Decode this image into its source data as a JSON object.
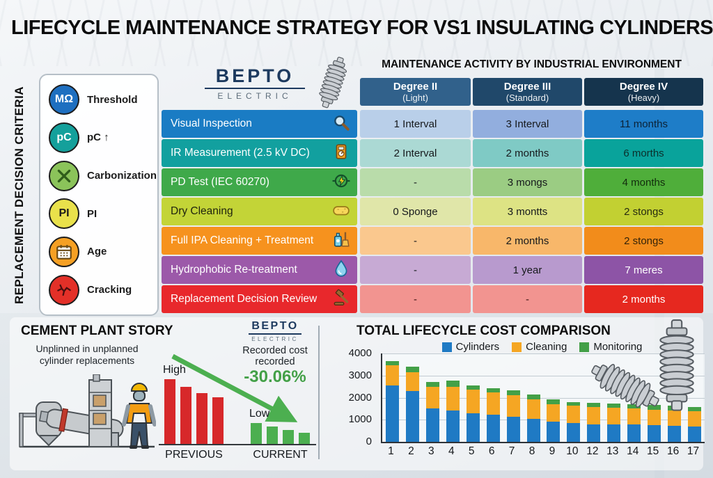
{
  "title": "LIFECYCLE MAINTENANCE STRATEGY FOR VS1 INSULATING CYLINDERS",
  "brand": {
    "name": "BEPTO",
    "sub": "ELECTRIC"
  },
  "sidebar": {
    "title": "REPLACEMENT DECISION CRITERIA",
    "items": [
      {
        "icon": "mohm-badge",
        "badge": "MΩ",
        "badge_color": "#ffffff",
        "color": "#1e6fc0",
        "label": "Threshold"
      },
      {
        "icon": "pc-badge",
        "badge": "pC",
        "badge_color": "#ffffff",
        "color": "#14a09b",
        "label": "pC ↑"
      },
      {
        "icon": "carbonization-icon",
        "color": "#8bc35a",
        "label": "Carbonization"
      },
      {
        "icon": "pi-badge",
        "badge": "PI",
        "badge_color": "#1a1a1a",
        "color": "#e9e14b",
        "label": "PI"
      },
      {
        "icon": "calendar-icon",
        "color": "#f5a024",
        "label": "Age"
      },
      {
        "icon": "crack-icon",
        "color": "#e33028",
        "label": "Cracking"
      }
    ]
  },
  "table": {
    "title": "MAINTENANCE ACTIVITY BY INDUSTRIAL ENVIRONMENT",
    "columns": [
      {
        "title": "Degree II",
        "subtitle": "(Light)",
        "bg": "#31618b"
      },
      {
        "title": "Degree III",
        "subtitle": "(Standard)",
        "bg": "#20486a"
      },
      {
        "title": "Degree IV",
        "subtitle": "(Heavy)",
        "bg": "#15344d"
      }
    ],
    "rows": [
      {
        "label": "Visual Inspection",
        "icon": "magnifier-icon",
        "label_bg": "#1a7cc4",
        "label_color": "#ffffff",
        "cells": [
          {
            "text": "1 Interval",
            "bg": "#b9cfe9",
            "color": "#16191c"
          },
          {
            "text": "3 Interval",
            "bg": "#92aede",
            "color": "#16191c"
          },
          {
            "text": "11 months",
            "bg": "#1e7dc8",
            "color": "#0c2236"
          }
        ]
      },
      {
        "label": "IR Measurement (2.5 kV DC)",
        "icon": "multimeter-icon",
        "label_bg": "#12a09f",
        "label_color": "#ffffff",
        "cells": [
          {
            "text": "2 Interval",
            "bg": "#abd9d4",
            "color": "#16191c"
          },
          {
            "text": "2 months",
            "bg": "#7fcac5",
            "color": "#16191c"
          },
          {
            "text": "6 morths",
            "bg": "#09a39b",
            "color": "#0b2f2b"
          }
        ]
      },
      {
        "label": "PD Test (IEC 60270)",
        "icon": "pd-test-icon",
        "label_bg": "#3fa94a",
        "label_color": "#ffffff",
        "cells": [
          {
            "text": "-",
            "bg": "#b9dcaa",
            "color": "#16191c"
          },
          {
            "text": "3 mongs",
            "bg": "#9bcc83",
            "color": "#16191c"
          },
          {
            "text": "4 months",
            "bg": "#4fae3a",
            "color": "#122c0d"
          }
        ]
      },
      {
        "label": "Dry Cleaning",
        "icon": "sponge-icon",
        "label_bg": "#c3d437",
        "label_color": "#20240e",
        "cells": [
          {
            "text": "0 Sponge",
            "bg": "#e0e6a9",
            "color": "#16191c"
          },
          {
            "text": "3 montts",
            "bg": "#dde384",
            "color": "#16191c"
          },
          {
            "text": "2 stongs",
            "bg": "#c2d032",
            "color": "#262a10"
          }
        ]
      },
      {
        "label": "Full IPA Cleaning + Treatment",
        "icon": "cleaning-kit-icon",
        "label_bg": "#f6921e",
        "label_color": "#ffffff",
        "cells": [
          {
            "text": "-",
            "bg": "#fac88e",
            "color": "#16191c"
          },
          {
            "text": "2 months",
            "bg": "#f8b76a",
            "color": "#16191c"
          },
          {
            "text": "2 stongs",
            "bg": "#f28c1b",
            "color": "#33230a"
          }
        ]
      },
      {
        "label": "Hydrophobic Re-treatment",
        "icon": "droplet-icon",
        "label_bg": "#9c59a9",
        "label_color": "#ffffff",
        "cells": [
          {
            "text": "-",
            "bg": "#c7aad4",
            "color": "#16191c"
          },
          {
            "text": "1 year",
            "bg": "#b89ace",
            "color": "#16191c"
          },
          {
            "text": "7 meres",
            "bg": "#8d54a6",
            "color": "#ffffff"
          }
        ]
      },
      {
        "label": "Replacement Decision Review",
        "icon": "gavel-icon",
        "label_bg": "#e8282c",
        "label_color": "#ffffff",
        "cells": [
          {
            "text": "-",
            "bg": "#f29490",
            "color": "#3c1513"
          },
          {
            "text": "-",
            "bg": "#f29490",
            "color": "#3c1513"
          },
          {
            "text": "2 months",
            "bg": "#e6281f",
            "color": "#ffffff"
          }
        ]
      }
    ]
  },
  "story": {
    "title": "CEMENT PLANT STORY",
    "subtitle_line1": "Unplinned in unplanned",
    "subtitle_line2": "cylinder replacements"
  },
  "chart_data": [
    {
      "type": "bar",
      "title": "CEMENT PLANT STORY",
      "subtitle": "Unplinned in unplanned cylinder replacements",
      "note": "no numeric axis shown; values are relative bar heights (0-100)",
      "groups": [
        {
          "label": "PREVIOUS",
          "annotation": "High",
          "color": "#d7282a",
          "values": [
            95,
            84,
            75,
            69
          ]
        },
        {
          "label": "CURRENT",
          "annotation": "Low",
          "color": "#4caf50",
          "values": [
            32,
            27,
            22,
            18
          ]
        }
      ],
      "callout": {
        "text_line1": "Recorded cost",
        "text_line2": "recorded",
        "value": "-30.06%",
        "color": "#43a047"
      }
    },
    {
      "type": "bar",
      "stacked": true,
      "title": "TOTAL LIFECYCLE COST COMPARISON",
      "categories": [
        "1",
        "2",
        "3",
        "4",
        "5",
        "6",
        "7",
        "8",
        "9",
        "10",
        "12",
        "13",
        "14",
        "15",
        "16",
        "17"
      ],
      "series": [
        {
          "name": "Cylinders",
          "color": "#1f7ac4",
          "values": [
            2550,
            2300,
            1500,
            1420,
            1300,
            1220,
            1150,
            1030,
            900,
            850,
            800,
            790,
            780,
            760,
            730,
            690
          ]
        },
        {
          "name": "Cleaning",
          "color": "#f5a623",
          "values": [
            900,
            850,
            1000,
            1080,
            1050,
            1010,
            950,
            900,
            800,
            780,
            760,
            740,
            720,
            700,
            700,
            690
          ]
        },
        {
          "name": "Monitoring",
          "color": "#43a047",
          "values": [
            200,
            250,
            200,
            260,
            200,
            210,
            220,
            210,
            210,
            180,
            200,
            190,
            200,
            210,
            220,
            210
          ]
        }
      ],
      "ylim": [
        0,
        4000
      ],
      "y_ticks": [
        0,
        1000,
        2000,
        3000,
        4000
      ],
      "xlabel": "",
      "ylabel": "",
      "grid": true,
      "legend_position": "top"
    }
  ]
}
